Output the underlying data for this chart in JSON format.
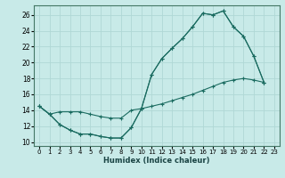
{
  "bg_color": "#c8eae8",
  "grid_color": "#b0d8d5",
  "line_color": "#1a6b60",
  "xlabel": "Humidex (Indice chaleur)",
  "xlim": [
    -0.5,
    23.5
  ],
  "ylim": [
    9.5,
    27.2
  ],
  "xticks": [
    0,
    1,
    2,
    3,
    4,
    5,
    6,
    7,
    8,
    9,
    10,
    11,
    12,
    13,
    14,
    15,
    16,
    17,
    18,
    19,
    20,
    21,
    22,
    23
  ],
  "yticks": [
    10,
    12,
    14,
    16,
    18,
    20,
    22,
    24,
    26
  ],
  "curve1_x": [
    0,
    1,
    2,
    3,
    4,
    5,
    6,
    7,
    8,
    9,
    10,
    11,
    12,
    13,
    14,
    15,
    16,
    17,
    18,
    19,
    20,
    21,
    22
  ],
  "curve1_y": [
    14.5,
    13.5,
    12.2,
    11.5,
    11.0,
    11.0,
    10.7,
    10.5,
    10.5,
    11.8,
    14.2,
    18.5,
    20.5,
    21.8,
    23.0,
    24.5,
    26.2,
    26.0,
    26.5,
    24.5,
    23.3,
    20.8,
    17.5
  ],
  "curve2_x": [
    0,
    1,
    2,
    3,
    4,
    5,
    6,
    7,
    8,
    9,
    10,
    11,
    12,
    13,
    14,
    15,
    16,
    17,
    18,
    19,
    20,
    21,
    22
  ],
  "curve2_y": [
    14.5,
    13.5,
    13.8,
    13.8,
    13.8,
    13.5,
    13.2,
    13.0,
    13.0,
    14.0,
    14.2,
    18.5,
    20.5,
    21.8,
    23.0,
    24.5,
    26.2,
    26.0,
    26.5,
    24.5,
    23.3,
    20.8,
    17.5
  ],
  "curve3_x": [
    0,
    1,
    2,
    3,
    4,
    5,
    6,
    7,
    8,
    9,
    10,
    11,
    12,
    13,
    14,
    15,
    16,
    17,
    18,
    19,
    20,
    21,
    22
  ],
  "curve3_y": [
    14.5,
    13.5,
    12.2,
    11.5,
    11.0,
    11.0,
    10.7,
    10.5,
    10.5,
    11.8,
    14.2,
    14.5,
    14.8,
    15.2,
    15.6,
    16.0,
    16.5,
    17.0,
    17.5,
    17.8,
    18.0,
    17.8,
    17.5
  ]
}
